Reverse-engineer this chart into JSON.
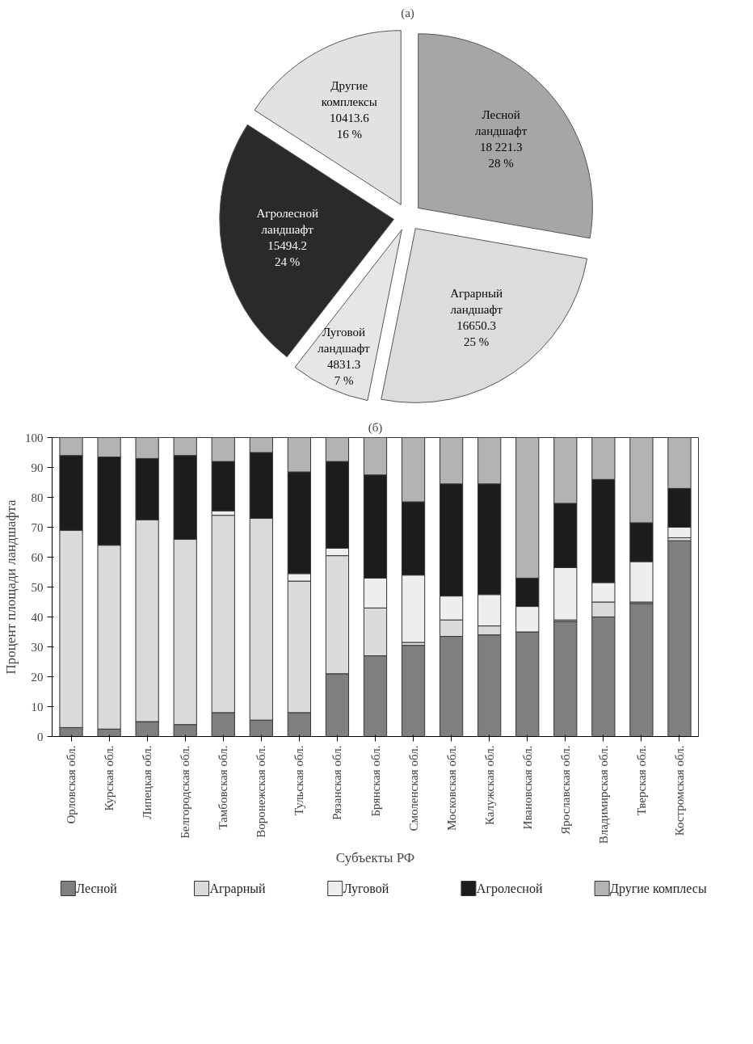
{
  "chart_data": [
    {
      "type": "pie",
      "title": "(a)",
      "categories": [
        "Лесной ландшафт",
        "Аграрный ландшафт",
        "Луговой ландшафт",
        "Агролесной ландшафт",
        "Другие комплексы"
      ],
      "values": [
        18221.3,
        16650.3,
        4831.3,
        15494.2,
        10413.6
      ],
      "value_labels": [
        "18 221.3\n28 %",
        "16650.3\n25 %",
        "4831.3\n7 %",
        "15494.2\n24 %",
        "10413.6\n16 %"
      ],
      "colors": [
        "#a6a6a6",
        "#dcdcdc",
        "#e6e6e6",
        "#2a2a2a",
        "#e2e2e2"
      ]
    },
    {
      "type": "bar",
      "title": "(б)",
      "stacked": true,
      "xlabel": "Субъекты РФ",
      "ylabel": "Процент площади ландшафта",
      "categories": [
        "Орловская обл.",
        "Курская обл.",
        "Липецкая обл.",
        "Белгородская обл.",
        "Тамбовская обл.",
        "Воронежская обл.",
        "Тульская обл.",
        "Рязанская обл.",
        "Брянская обл.",
        "Смоленская обл.",
        "Московская обл.",
        "Калужская обл.",
        "Ивановская обл.",
        "Ярославская обл.",
        "Владимирская обл.",
        "Тверская обл.",
        "Костромская обл."
      ],
      "series": [
        {
          "name": "Лесной",
          "color": "#7f7f7f",
          "values": [
            3,
            2.5,
            5,
            4,
            8,
            5.5,
            8,
            21,
            27,
            30.5,
            33.5,
            34,
            35,
            38.5,
            40,
            44.5,
            65.5
          ]
        },
        {
          "name": "Аграрный",
          "color": "#dadada",
          "values": [
            66,
            61.5,
            67.5,
            62,
            66,
            67.5,
            44,
            39.5,
            16,
            1,
            5.5,
            3,
            0,
            0.5,
            5,
            0.5,
            1
          ]
        },
        {
          "name": "Луговой",
          "color": "#eeeeee",
          "values": [
            0,
            0,
            0,
            0,
            1.5,
            0,
            2.5,
            2.5,
            10,
            22.5,
            8,
            10.5,
            8.5,
            17.5,
            6.5,
            13.5,
            3.5
          ]
        },
        {
          "name": "Агролесной",
          "color": "#1c1c1c",
          "values": [
            25,
            29.5,
            20.5,
            28,
            16.5,
            22,
            34,
            29,
            34.5,
            24.5,
            37.5,
            37,
            9.5,
            21.5,
            34.5,
            13,
            13
          ]
        },
        {
          "name": "Другие комплесы",
          "color": "#b3b3b3",
          "values": [
            6,
            6.5,
            7,
            6,
            8,
            5,
            11.5,
            8,
            12.5,
            21.5,
            15.5,
            15.5,
            47,
            22,
            14,
            28.5,
            17
          ]
        }
      ],
      "ylim": [
        0,
        100
      ],
      "yticks": [
        0,
        10,
        20,
        30,
        40,
        50,
        60,
        70,
        80,
        90,
        100
      ],
      "grid": false,
      "legend": "bottom"
    }
  ]
}
